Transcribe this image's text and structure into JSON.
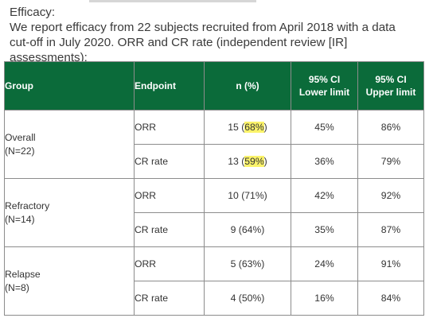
{
  "intro": {
    "heading": "Efficacy:",
    "line1": "We report efficacy from 22 subjects recruited from April 2018 with a data",
    "line2": "cut-off in July 2020. ORR and CR rate (independent review [IR] assessments):"
  },
  "table": {
    "headers": {
      "group": "Group",
      "endpoint": "Endpoint",
      "n": "n (%)",
      "ci_lower_line1": "95% CI",
      "ci_lower_line2": "Lower limit",
      "ci_upper_line1": "95% CI",
      "ci_upper_line2": "Upper limit"
    },
    "groups": [
      {
        "name": "Overall",
        "size": "(N=22)",
        "rows": [
          {
            "endpoint": "ORR",
            "n": "15",
            "pct": "68%",
            "lower": "45%",
            "upper": "86%"
          },
          {
            "endpoint": "CR rate",
            "n": "13",
            "pct": "59%",
            "lower": "36%",
            "upper": "79%"
          }
        ]
      },
      {
        "name": "Refractory",
        "size": "(N=14)",
        "rows": [
          {
            "endpoint": "ORR",
            "n": "10",
            "pct": "71%",
            "lower": "42%",
            "upper": "92%"
          },
          {
            "endpoint": "CR rate",
            "n": "9",
            "pct": "64%",
            "lower": "35%",
            "upper": "87%"
          }
        ]
      },
      {
        "name": "Relapse",
        "size": "(N=8)",
        "rows": [
          {
            "endpoint": "ORR",
            "n": "5",
            "pct": "63%",
            "lower": "24%",
            "upper": "91%"
          },
          {
            "endpoint": "CR rate",
            "n": "4",
            "pct": "50%",
            "lower": "16%",
            "upper": "84%"
          }
        ]
      }
    ],
    "highlight_color": "#fbf36a",
    "header_color": "#0b6b3a"
  }
}
